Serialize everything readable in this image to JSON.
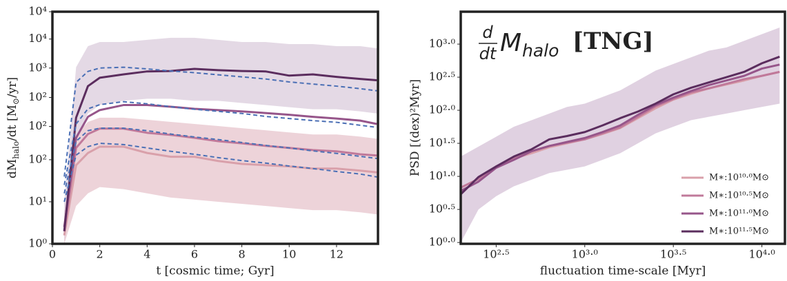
{
  "chart_data": [
    {
      "type": "line",
      "xlabel": "t [cosmic time; Gyr]",
      "ylabel": [
        "dM",
        "halo",
        "/dt [M",
        "⊙",
        "/yr]"
      ],
      "xlim": [
        0,
        13.75
      ],
      "ylim": [
        0,
        5.52
      ],
      "xticks": [
        0,
        2,
        4,
        6,
        8,
        10,
        12
      ],
      "yticks": [
        {
          "value": 0,
          "label": "10⁰"
        },
        {
          "value": 1,
          "label": "10¹"
        },
        {
          "value": 2,
          "label": "10²"
        },
        {
          "value": 2.79,
          "label": "10²"
        },
        {
          "value": 3.48,
          "label": "10²"
        },
        {
          "value": 4.18,
          "label": "10³"
        },
        {
          "value": 4.87,
          "label": "10⁴"
        },
        {
          "value": 5.52,
          "label": "10⁴"
        }
      ],
      "x": [
        0.5,
        1,
        1.5,
        2,
        3,
        4,
        5,
        6,
        7,
        8,
        9,
        10,
        11,
        12,
        13,
        13.7
      ],
      "series": [
        {
          "color": "#d9a0aa",
          "values": [
            0.2,
            1.87,
            2.16,
            2.31,
            2.31,
            2.16,
            2.07,
            2.07,
            1.97,
            1.9,
            1.87,
            1.84,
            1.79,
            1.79,
            1.74,
            1.7
          ],
          "band_color": "#e9c8cf",
          "upper": [
            0.8,
            2.6,
            2.9,
            3.0,
            3.0,
            2.95,
            2.9,
            2.85,
            2.8,
            2.75,
            2.7,
            2.65,
            2.6,
            2.6,
            2.55,
            2.5
          ],
          "lower": [
            0,
            0.9,
            1.2,
            1.35,
            1.3,
            1.2,
            1.1,
            1.05,
            1.0,
            0.95,
            0.9,
            0.85,
            0.8,
            0.8,
            0.75,
            0.7
          ]
        },
        {
          "color": "#c0799a",
          "values": [
            0.3,
            2.28,
            2.61,
            2.74,
            2.74,
            2.64,
            2.59,
            2.52,
            2.44,
            2.39,
            2.33,
            2.28,
            2.23,
            2.2,
            2.13,
            2.1
          ]
        },
        {
          "color": "#96558a",
          "values": [
            0.4,
            2.52,
            3.02,
            3.18,
            3.3,
            3.3,
            3.26,
            3.21,
            3.18,
            3.15,
            3.11,
            3.07,
            3.02,
            2.98,
            2.93,
            2.85
          ]
        },
        {
          "color": "#5b2d5e",
          "values": [
            0.3,
            3.0,
            3.75,
            3.95,
            4.03,
            4.1,
            4.11,
            4.16,
            4.13,
            4.11,
            4.1,
            4.0,
            4.03,
            3.97,
            3.92,
            3.89
          ],
          "band_color": "#ddd0df",
          "upper": [
            1,
            4.2,
            4.7,
            4.8,
            4.8,
            4.85,
            4.9,
            4.9,
            4.85,
            4.8,
            4.8,
            4.75,
            4.75,
            4.7,
            4.7,
            4.65
          ],
          "lower": [
            0,
            2.5,
            3.1,
            3.3,
            3.4,
            3.45,
            3.45,
            3.4,
            3.4,
            3.35,
            3.3,
            3.25,
            3.2,
            3.2,
            3.15,
            3.1
          ]
        }
      ],
      "fits": [
        {
          "color": "#4a6fb5",
          "style": "dashed",
          "values": [
            1.0,
            2.11,
            2.31,
            2.39,
            2.36,
            2.28,
            2.2,
            2.13,
            2.05,
            1.98,
            1.92,
            1.85,
            1.79,
            1.72,
            1.66,
            1.59
          ]
        },
        {
          "color": "#4a6fb5",
          "style": "dashed",
          "values": [
            1.2,
            2.44,
            2.69,
            2.75,
            2.75,
            2.69,
            2.61,
            2.54,
            2.48,
            2.41,
            2.34,
            2.28,
            2.21,
            2.15,
            2.08,
            2.03
          ]
        },
        {
          "color": "#4a6fb5",
          "style": "dashed",
          "values": [
            1.4,
            2.85,
            3.21,
            3.31,
            3.38,
            3.33,
            3.26,
            3.2,
            3.15,
            3.1,
            3.03,
            2.98,
            2.93,
            2.89,
            2.82,
            2.77
          ]
        },
        {
          "color": "#4a6fb5",
          "style": "dashed",
          "values": [
            1.6,
            3.84,
            4.1,
            4.18,
            4.2,
            4.16,
            4.11,
            4.07,
            4.02,
            3.97,
            3.92,
            3.85,
            3.8,
            3.75,
            3.69,
            3.64
          ]
        }
      ]
    },
    {
      "type": "line",
      "title": {
        "num": "d",
        "den": "dt",
        "symbol": "M",
        "subscript": "halo",
        "suffix": "[TNG]"
      },
      "xlabel": "fluctuation time-scale [Myr]",
      "ylabel": [
        "PSD [(dex)²Myr]"
      ],
      "xlim": [
        2.3,
        4.13
      ],
      "ylim": [
        -0.02,
        3.49
      ],
      "xticks": [
        {
          "value": 2.5,
          "label": "10²·⁵"
        },
        {
          "value": 3.0,
          "label": "10³·⁰"
        },
        {
          "value": 3.5,
          "label": "10³·⁵"
        },
        {
          "value": 4.0,
          "label": "10⁴·⁰"
        }
      ],
      "yticks": [
        {
          "value": 0,
          "label": "10⁰·⁰"
        },
        {
          "value": 0.5,
          "label": "10⁰·⁵"
        },
        {
          "value": 1.0,
          "label": "10¹·⁰"
        },
        {
          "value": 1.5,
          "label": "10¹·⁵"
        },
        {
          "value": 2.0,
          "label": "10²·⁰"
        },
        {
          "value": 2.5,
          "label": "10²·⁵"
        },
        {
          "value": 3.0,
          "label": "10³·⁰"
        }
      ],
      "legend": "lower right",
      "x": [
        2.3,
        2.4,
        2.5,
        2.6,
        2.7,
        2.8,
        2.9,
        3.0,
        3.1,
        3.2,
        3.3,
        3.4,
        3.5,
        3.6,
        3.7,
        3.8,
        3.9,
        4.0,
        4.1
      ],
      "series": [
        {
          "name": "M∗:10¹⁰·⁰M⊙",
          "color": "#d9a0aa",
          "values": [
            0.83,
            0.96,
            1.15,
            1.27,
            1.35,
            1.44,
            1.5,
            1.56,
            1.64,
            1.73,
            1.88,
            2.03,
            2.16,
            2.25,
            2.33,
            2.39,
            2.45,
            2.52,
            2.58
          ]
        },
        {
          "name": "M∗:10¹⁰·⁵M⊙",
          "color": "#c0799a",
          "values": [
            0.83,
            0.96,
            1.15,
            1.27,
            1.38,
            1.46,
            1.51,
            1.56,
            1.65,
            1.74,
            1.9,
            2.06,
            2.17,
            2.27,
            2.33,
            2.4,
            2.47,
            2.52,
            2.58
          ]
        },
        {
          "name": "M∗:10¹¹·⁰M⊙",
          "color": "#96558a",
          "values": [
            0.78,
            0.92,
            1.13,
            1.25,
            1.38,
            1.46,
            1.52,
            1.58,
            1.67,
            1.77,
            1.93,
            2.08,
            2.19,
            2.29,
            2.38,
            2.45,
            2.52,
            2.63,
            2.69
          ]
        },
        {
          "name": "M∗:10¹¹·⁵M⊙",
          "color": "#5b2d5e",
          "values": [
            0.73,
            0.99,
            1.15,
            1.3,
            1.41,
            1.56,
            1.61,
            1.67,
            1.77,
            1.88,
            1.98,
            2.1,
            2.24,
            2.34,
            2.42,
            2.5,
            2.58,
            2.71,
            2.81
          ],
          "band_color": "#d8c6da",
          "upper": [
            1.3,
            1.45,
            1.6,
            1.75,
            1.85,
            1.95,
            2.05,
            2.1,
            2.2,
            2.3,
            2.45,
            2.6,
            2.7,
            2.8,
            2.9,
            2.95,
            3.05,
            3.15,
            3.25
          ],
          "lower": [
            0.0,
            0.5,
            0.7,
            0.85,
            0.95,
            1.05,
            1.1,
            1.15,
            1.25,
            1.35,
            1.5,
            1.65,
            1.75,
            1.85,
            1.9,
            1.95,
            2.0,
            2.05,
            2.1
          ]
        }
      ]
    }
  ]
}
